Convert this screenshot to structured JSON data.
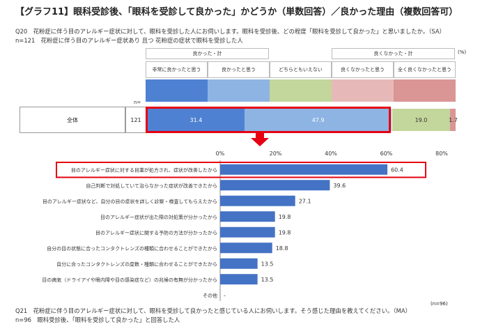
{
  "title": "【グラフ11】眼科受診後、「眼科を受診して良かった」かどうか（単数回答）／良かった理由（複数回答可）",
  "q20": {
    "line1": "Q20　花粉症に伴う目のアレルギー症状に対して、眼科を受診した人にお伺いします。眼科を受診後、どの程度「眼科を受診して良かった」と思いましたか。（SA）",
    "line2": "n=121　花粉症に伴う目のアレルギー症状あり 且つ 花粉症の症状で眼科を受診した人"
  },
  "top_chart": {
    "unit": "(%)",
    "group_good": "良かった・計",
    "group_bad": "良くなかった・計",
    "n_label": "n=",
    "row_label": "全体",
    "row_n": "121",
    "categories": [
      {
        "label": "非常に良かったと思う",
        "value": 31.4,
        "value_text": "31.4",
        "color": "#4f81d2"
      },
      {
        "label": "良かったと思う",
        "value": 47.9,
        "value_text": "47.9",
        "color": "#8eb4e3"
      },
      {
        "label": "どちらともいえない",
        "value": 19.0,
        "value_text": "19.0",
        "color": "#c3d69b"
      },
      {
        "label": "良くなかったと思う",
        "value": 0.0,
        "value_text": "",
        "color": "#e6b9b8"
      },
      {
        "label": "全く良くなかったと思う",
        "value": 1.7,
        "value_text": "1.7",
        "color": "#da9694"
      }
    ]
  },
  "chart_data": {
    "type": "bar",
    "orientation": "horizontal",
    "categories": [
      "目のアレルギー症状に対する目薬が処方され、症状が改善したから",
      "自己判断で対処していて治らなかった症状が改善できたから",
      "目のアレルギー症状など、自分の目の症状を詳しく診察・検査してもらえたから",
      "目のアレルギー症状が出た際の対処策が分かったから",
      "目のアレルギー症状に関する予防の方法が分かったから",
      "自分の目の状態に合ったコンタクトレンズの種類に合わせることができたから",
      "自分に合ったコンタクトレンズの度数・種類に合わせることができたから",
      "目の病気（ドライアイや眼内障や目の感染症など）の兆候の有無が分かったから",
      "その他"
    ],
    "values": [
      60.4,
      39.6,
      27.1,
      19.8,
      19.8,
      18.8,
      13.5,
      13.5,
      null
    ],
    "value_labels": [
      "60.4",
      "39.6",
      "27.1",
      "19.8",
      "19.8",
      "18.8",
      "13.5",
      "13.5",
      "-"
    ],
    "xlim": [
      0,
      80
    ],
    "xticks": [
      "0%",
      "20%",
      "40%",
      "60%",
      "80%"
    ],
    "highlighted_index": 0,
    "bar_color": "#4472c4",
    "n_note": "(n=96)"
  },
  "q21": {
    "line1": "Q21　花粉症に伴う目のアレルギー症状に対して、眼科を受診して良かったと感じている人にお伺いします。そう感じた理由を教えてください。（MA）",
    "line2": "n=96　眼科受診後、「眼科を受診して良かった」と回答した人"
  },
  "colors": {
    "highlight": "#e60012",
    "arrow": "#e60012"
  }
}
